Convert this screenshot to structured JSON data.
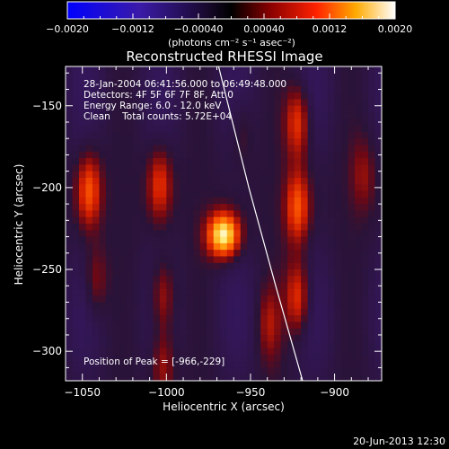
{
  "chart_data": {
    "type": "heatmap",
    "title": "Reconstructed RHESSI Image",
    "xlabel": "Heliocentric X (arcsec)",
    "ylabel": "Heliocentric Y (arcsec)",
    "xlim": [
      -1060,
      -872
    ],
    "ylim": [
      -318,
      -126
    ],
    "x_ticks": [
      -1050,
      -1000,
      -950,
      -900
    ],
    "y_ticks": [
      -150,
      -200,
      -250,
      -300
    ],
    "x_tick_labels": [
      "−1050",
      "−1000",
      "−950",
      "−900"
    ],
    "y_tick_labels": [
      "−150",
      "−200",
      "−250",
      "−300"
    ],
    "colorbar": {
      "range": [
        -0.002,
        0.002
      ],
      "ticks": [
        -0.002,
        -0.0012,
        -0.0004,
        0.0004,
        0.0012,
        0.002
      ],
      "tick_labels": [
        "−0.0020",
        "−0.0012",
        "−0.00040",
        "0.00040",
        "0.0012",
        "0.0020"
      ],
      "units": "(photons cm⁻² s⁻¹ asec⁻²)",
      "colormap": "red-temperature with blue-purple negatives"
    },
    "annotations": [
      "28-Jan-2004 06:41:56.000 to 06:49:48.000",
      "Detectors: 4F 5F 6F 7F 8F, Att 0",
      "Energy Range: 6.0 - 12.0 keV",
      "Clean    Total counts: 5.72E+04"
    ],
    "peak_label": "Position of Peak = [-966,-229]",
    "peak": {
      "x": -966,
      "y": -229,
      "value": 0.002
    },
    "limb_curve": [
      [
        -969,
        -126
      ],
      [
        -951,
        -200
      ],
      [
        -935,
        -260
      ],
      [
        -919,
        -318
      ]
    ],
    "sources": [
      {
        "x": -966,
        "y": -229,
        "value": 0.002
      },
      {
        "x": -1046,
        "y": -202,
        "value": 0.001
      },
      {
        "x": -1042,
        "y": -257,
        "value": 0.0005
      },
      {
        "x": -1004,
        "y": -198,
        "value": 0.0008
      },
      {
        "x": -1002,
        "y": -267,
        "value": 0.0007
      },
      {
        "x": -1002,
        "y": -308,
        "value": 0.0006
      },
      {
        "x": -922,
        "y": -160,
        "value": 0.0009
      },
      {
        "x": -922,
        "y": -212,
        "value": 0.001
      },
      {
        "x": -922,
        "y": -267,
        "value": 0.0009
      },
      {
        "x": -883,
        "y": -192,
        "value": 0.0004
      },
      {
        "x": -939,
        "y": -283,
        "value": 0.0005
      },
      {
        "x": -955,
        "y": -165,
        "value": 0.0003
      }
    ],
    "grid": false
  },
  "footer": {
    "date": "20-Jun-2013 12:30"
  }
}
